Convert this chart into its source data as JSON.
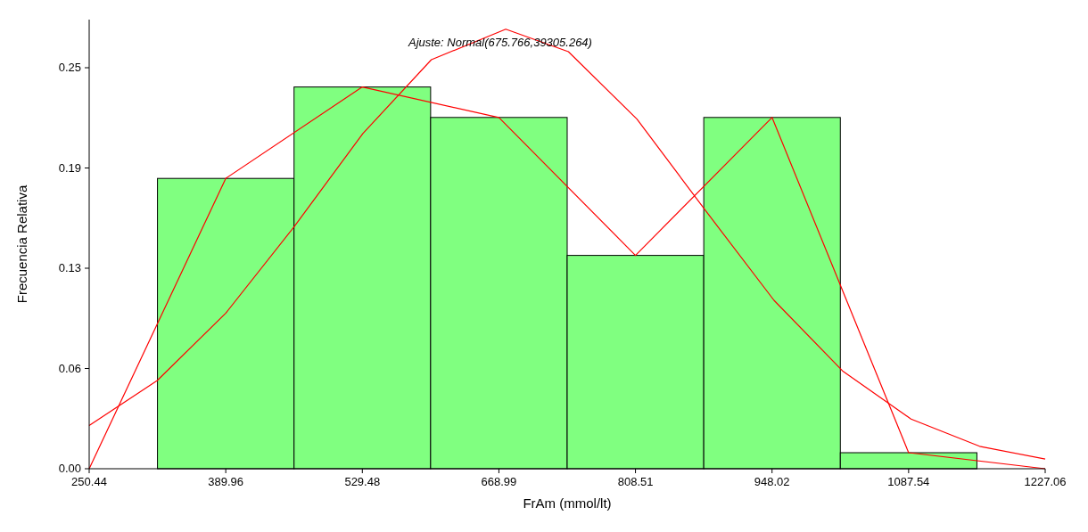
{
  "chart_data": {
    "type": "histogram",
    "xlabel": "FrAm (mmol/lt)",
    "ylabel": "Frecuencia Relativa",
    "annotations": [
      "Ajuste: Normal(675.766,39305.264)"
    ],
    "bins": [
      320.2,
      459.72,
      599.24,
      738.75,
      878.27,
      1017.78,
      1157.3
    ],
    "values": [
      0.181,
      0.238,
      0.219,
      0.133,
      0.219,
      0.01
    ],
    "color": "#80ff80",
    "series": [
      {
        "type": "line",
        "color": "#ff0000",
        "x": [
          250.44,
          389.96,
          529.48,
          668.99,
          808.51,
          948.02,
          1087.54,
          1227.06
        ],
        "values": [
          0,
          0.181,
          0.238,
          0.219,
          0.133,
          0.219,
          0.01,
          0
        ]
      },
      {
        "type": "line",
        "color": "#ff0000",
        "x": [
          250.44,
          320,
          390,
          460,
          530,
          600,
          676,
          740,
          810,
          880,
          950,
          1020,
          1090,
          1160,
          1227.06
        ],
        "values": [
          0.027,
          0.055,
          0.097,
          0.151,
          0.209,
          0.255,
          0.274,
          0.26,
          0.218,
          0.161,
          0.105,
          0.061,
          0.031,
          0.014,
          0.006
        ]
      }
    ],
    "xlim": [
      250.44,
      1227.06
    ],
    "xticks": [
      250.44,
      389.96,
      529.48,
      668.99,
      808.51,
      948.02,
      1087.54,
      1227.06
    ],
    "ylim": [
      0,
      0.28
    ],
    "yticks": [
      {
        "value": 0,
        "label": "0.00"
      },
      {
        "value": 0.0625,
        "label": "0.06"
      },
      {
        "value": 0.125,
        "label": "0.13"
      },
      {
        "value": 0.1875,
        "label": "0.19"
      },
      {
        "value": 0.25,
        "label": "0.25"
      }
    ],
    "grid": false
  }
}
